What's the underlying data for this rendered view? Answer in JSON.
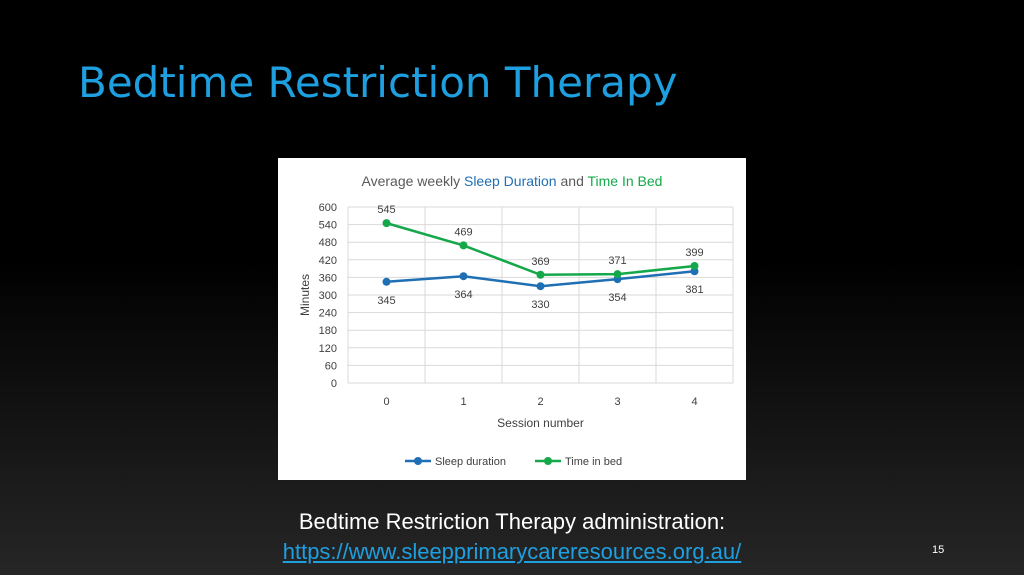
{
  "slide": {
    "title": "Bedtime Restriction Therapy",
    "caption_line1": "Bedtime Restriction Therapy administration:",
    "caption_link": "https://www.sleepprimarycareresources.org.au/",
    "page_number": "15"
  },
  "chart_data": {
    "type": "line",
    "title_parts": [
      {
        "text": "Average weekly ",
        "color": "#595959"
      },
      {
        "text": "Sleep Duration",
        "color": "#1f6fb4"
      },
      {
        "text": " and ",
        "color": "#595959"
      },
      {
        "text": "Time In Bed",
        "color": "#14a84a"
      }
    ],
    "xlabel": "Session number",
    "ylabel": "Minutes",
    "x": [
      0,
      1,
      2,
      3,
      4
    ],
    "ylim": [
      0,
      600
    ],
    "yticks": [
      0,
      60,
      120,
      180,
      240,
      300,
      360,
      420,
      480,
      540,
      600
    ],
    "grid": true,
    "legend_position": "bottom",
    "series": [
      {
        "name": "Sleep duration",
        "color": "#1f6fb4",
        "values": [
          345,
          364,
          330,
          354,
          381
        ],
        "label_position": "below"
      },
      {
        "name": "Time in bed",
        "color": "#14a84a",
        "values": [
          545,
          469,
          369,
          371,
          399
        ],
        "label_position": "above"
      }
    ]
  }
}
